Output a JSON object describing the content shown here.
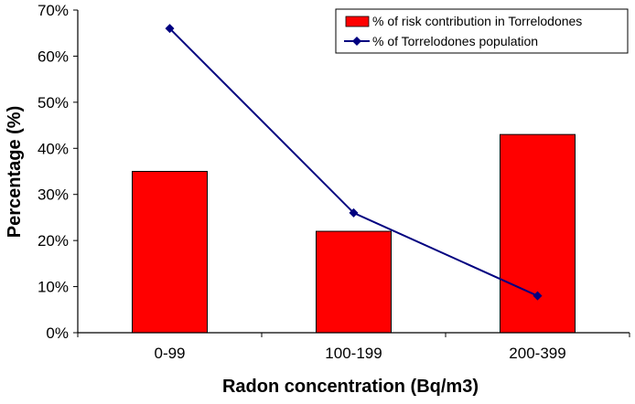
{
  "chart_data": {
    "type": "bar",
    "title": "",
    "xlabel": "Radon concentration (Bq/m3)",
    "ylabel": "Percentage (%)",
    "categories": [
      "0-99",
      "100-199",
      "200-399"
    ],
    "ylim": [
      0,
      70
    ],
    "yticks": [
      "0%",
      "10%",
      "20%",
      "30%",
      "40%",
      "50%",
      "60%",
      "70%"
    ],
    "grid": false,
    "legend_position": "top-right",
    "series": [
      {
        "name": "% of risk contribution in Torrelodones",
        "type": "bar",
        "values": [
          35,
          22,
          43
        ],
        "color": "#ff0000"
      },
      {
        "name": "% of Torrelodones population",
        "type": "line",
        "values": [
          66,
          26,
          8
        ],
        "color": "#000080"
      }
    ]
  }
}
